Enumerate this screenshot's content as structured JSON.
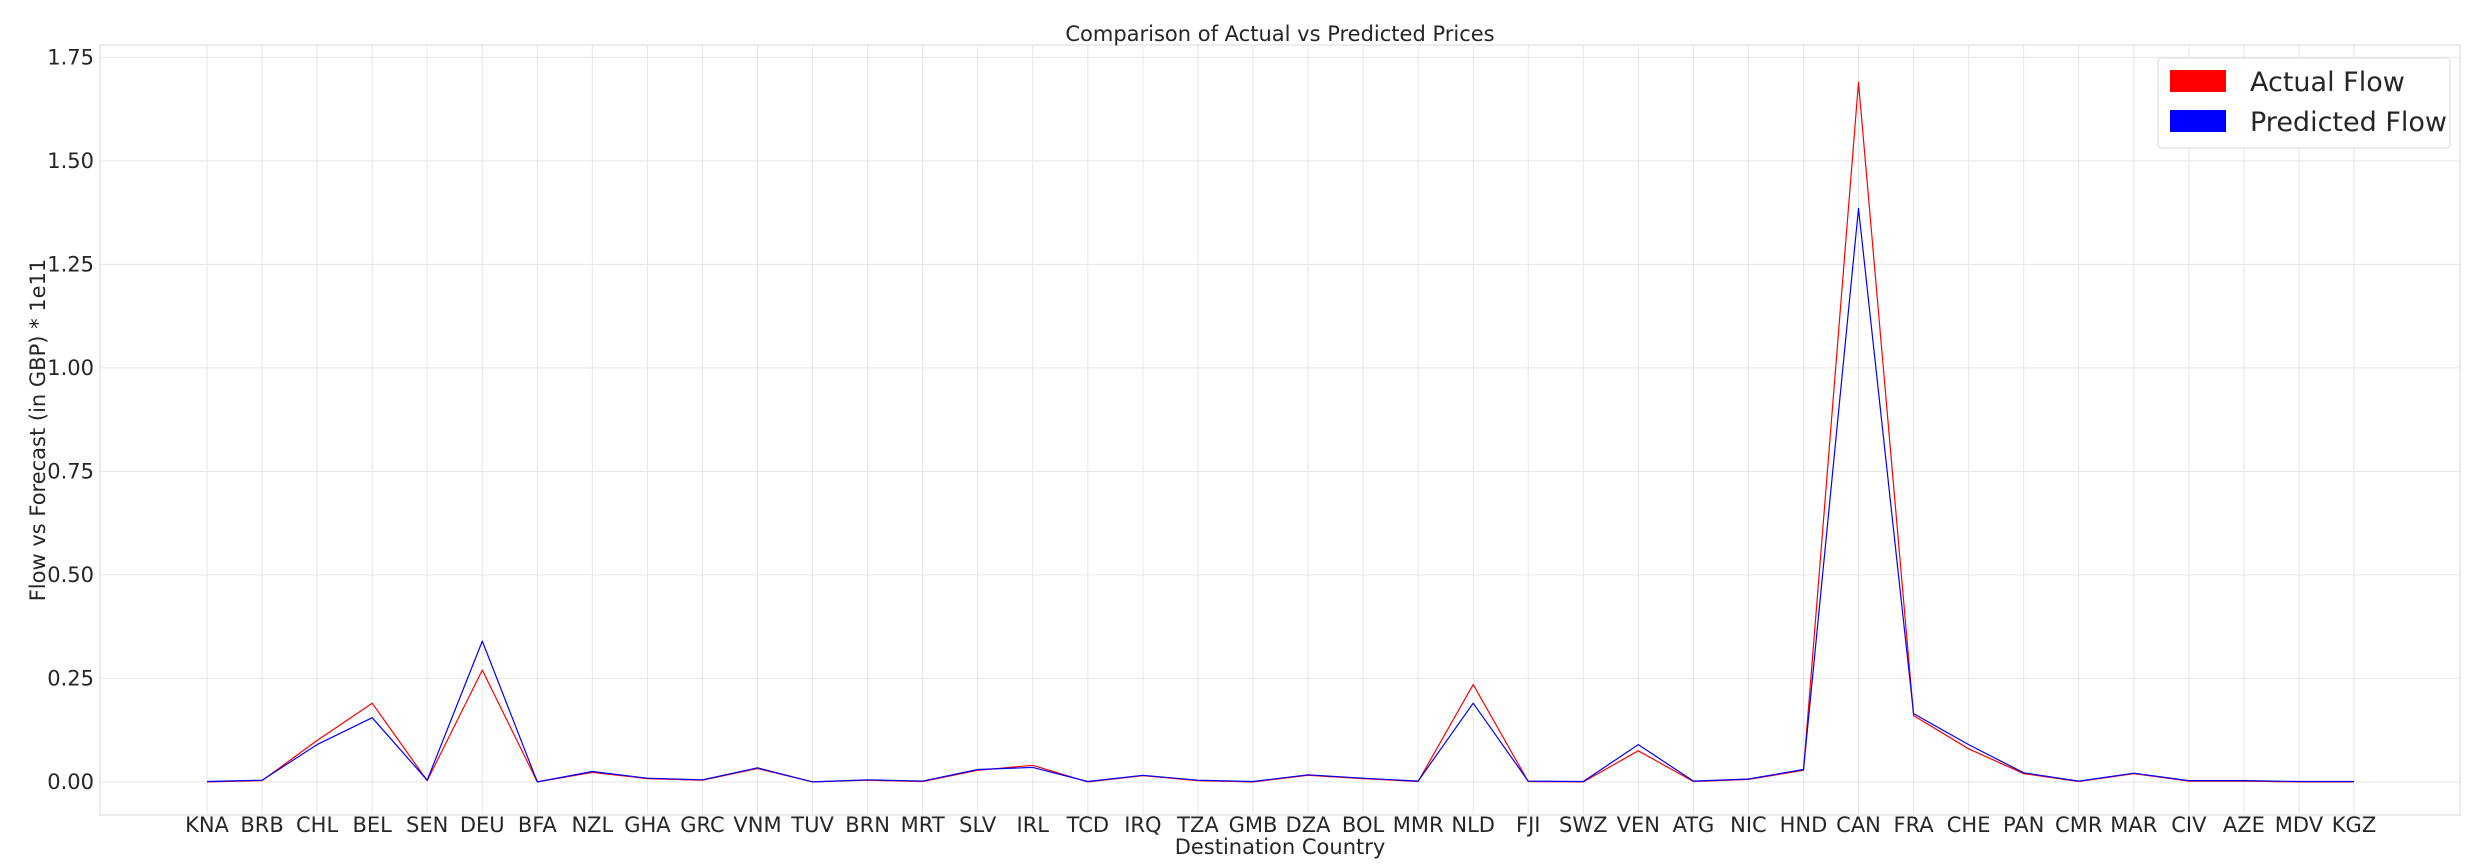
{
  "chart_data": {
    "type": "line",
    "title": "Comparison of Actual vs Predicted Prices",
    "xlabel": "Destination Country",
    "ylabel": "Flow vs Forecast (in GBP) * 1e11",
    "ylim": [
      -0.08,
      1.78
    ],
    "y_ticks": [
      "0.00",
      "0.25",
      "0.50",
      "0.75",
      "1.00",
      "1.25",
      "1.50",
      "1.75"
    ],
    "grid": true,
    "legend_position": "top-right",
    "categories": [
      "KNA",
      "BRB",
      "CHL",
      "BEL",
      "SEN",
      "DEU",
      "BFA",
      "NZL",
      "GHA",
      "GRC",
      "VNM",
      "TUV",
      "BRN",
      "MRT",
      "SLV",
      "IRL",
      "TCD",
      "IRQ",
      "TZA",
      "GMB",
      "DZA",
      "BOL",
      "MMR",
      "NLD",
      "FJI",
      "SWZ",
      "VEN",
      "ATG",
      "NIC",
      "HND",
      "CAN",
      "FRA",
      "CHE",
      "PAN",
      "CMR",
      "MAR",
      "CIV",
      "AZE",
      "MDV",
      "KGZ"
    ],
    "series": [
      {
        "name": "Actual Flow",
        "color": "#ff0000",
        "values": [
          0.0,
          0.003,
          0.1,
          0.19,
          0.003,
          0.27,
          0.0,
          0.023,
          0.008,
          0.004,
          0.032,
          0.0,
          0.004,
          0.001,
          0.028,
          0.04,
          0.0,
          0.015,
          0.003,
          0.0,
          0.016,
          0.008,
          0.001,
          0.235,
          0.001,
          0.0,
          0.075,
          0.001,
          0.006,
          0.028,
          1.69,
          0.16,
          0.08,
          0.02,
          0.001,
          0.02,
          0.002,
          0.002,
          0.0,
          0.0
        ]
      },
      {
        "name": "Predicted Flow",
        "color": "#0000ff",
        "values": [
          0.001,
          0.004,
          0.09,
          0.155,
          0.004,
          0.34,
          0.0,
          0.025,
          0.009,
          0.005,
          0.034,
          0.0,
          0.005,
          0.002,
          0.03,
          0.035,
          0.001,
          0.016,
          0.004,
          0.001,
          0.017,
          0.009,
          0.002,
          0.19,
          0.002,
          0.001,
          0.09,
          0.002,
          0.007,
          0.03,
          1.385,
          0.165,
          0.09,
          0.022,
          0.002,
          0.021,
          0.003,
          0.003,
          0.001,
          0.001
        ]
      }
    ]
  }
}
